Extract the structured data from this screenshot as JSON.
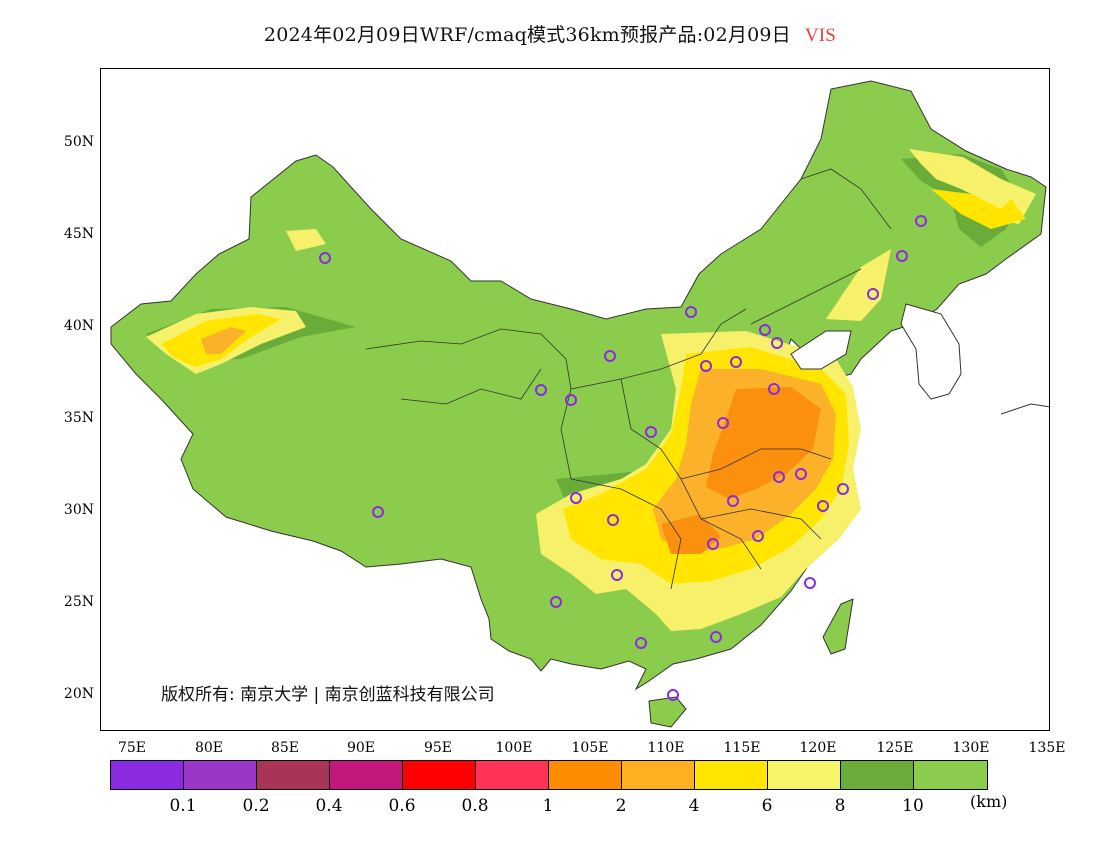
{
  "title": {
    "main": "2024年02月09日WRF/cmaq模式36km预报产品:02月09日",
    "variable": "VIS"
  },
  "map": {
    "lat_labels": [
      "50N",
      "45N",
      "40N",
      "35N",
      "30N",
      "25N",
      "20N"
    ],
    "lon_labels": [
      "75E",
      "80E",
      "85E",
      "90E",
      "95E",
      "100E",
      "105E",
      "110E",
      "115E",
      "120E",
      "125E",
      "130E",
      "135E"
    ],
    "copyright": "版权所有: 南京大学 | 南京创蓝科技有限公司",
    "colors": {
      "green": "#8ccc4c",
      "dark_green": "#6aac3a",
      "light_yellow": "#f7f06a",
      "yellow": "#ffe500",
      "orange_light": "#fcb12a",
      "orange": "#fb8f0e",
      "station_marker": "#8a2be2"
    }
  },
  "legend": {
    "colors": [
      "#8a2be2",
      "#9b36c8",
      "#a83458",
      "#c2187e",
      "#ff0000",
      "#ff3355",
      "#ff8c00",
      "#ffb020",
      "#ffe500",
      "#f6f56a",
      "#6aac3a",
      "#8ccc4c"
    ],
    "labels": [
      "0.1",
      "0.2",
      "0.4",
      "0.6",
      "0.8",
      "1",
      "2",
      "4",
      "6",
      "8",
      "10"
    ],
    "unit": "(km)"
  }
}
